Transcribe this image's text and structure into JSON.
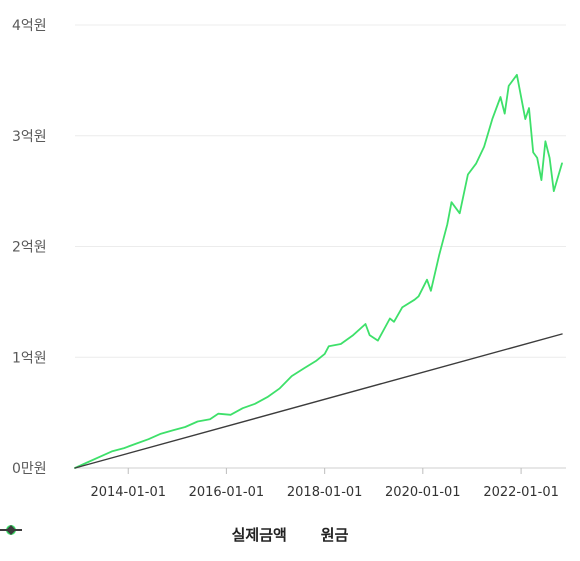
{
  "chart_data": {
    "type": "line",
    "y_tick_labels": [
      "0만원",
      "1억원",
      "2억원",
      "3억원",
      "4억원"
    ],
    "y_ticks": [
      0,
      1,
      2,
      3,
      4
    ],
    "ylim": [
      0,
      4
    ],
    "x_tick_labels": [
      "2014-01-01",
      "2016-01-01",
      "2018-01-01",
      "2020-01-01",
      "2022-01-01"
    ],
    "x_ticks": [
      "2014-01-01",
      "2016-01-01",
      "2018-01-01",
      "2020-01-01",
      "2022-01-01"
    ],
    "xlim": [
      "2012-12-01",
      "2022-12-01"
    ],
    "grid": "horizontal",
    "legend_position": "bottom-center",
    "series": [
      {
        "name": "실제금액",
        "color": "#3ee06a",
        "marker": "circle",
        "points": [
          [
            "2012-12-01",
            0.0
          ],
          [
            "2013-03-01",
            0.05
          ],
          [
            "2013-06-01",
            0.1
          ],
          [
            "2013-09-01",
            0.15
          ],
          [
            "2013-12-01",
            0.18
          ],
          [
            "2014-03-01",
            0.22
          ],
          [
            "2014-06-01",
            0.26
          ],
          [
            "2014-09-01",
            0.31
          ],
          [
            "2014-12-01",
            0.34
          ],
          [
            "2015-03-01",
            0.37
          ],
          [
            "2015-06-01",
            0.42
          ],
          [
            "2015-09-01",
            0.44
          ],
          [
            "2015-11-01",
            0.49
          ],
          [
            "2016-02-01",
            0.48
          ],
          [
            "2016-05-01",
            0.54
          ],
          [
            "2016-08-01",
            0.58
          ],
          [
            "2016-11-01",
            0.64
          ],
          [
            "2017-02-01",
            0.72
          ],
          [
            "2017-05-01",
            0.83
          ],
          [
            "2017-08-01",
            0.9
          ],
          [
            "2017-11-01",
            0.97
          ],
          [
            "2018-01-01",
            1.03
          ],
          [
            "2018-02-01",
            1.1
          ],
          [
            "2018-05-01",
            1.12
          ],
          [
            "2018-08-01",
            1.2
          ],
          [
            "2018-11-01",
            1.3
          ],
          [
            "2018-12-01",
            1.2
          ],
          [
            "2019-02-01",
            1.15
          ],
          [
            "2019-05-01",
            1.35
          ],
          [
            "2019-06-01",
            1.32
          ],
          [
            "2019-08-01",
            1.45
          ],
          [
            "2019-11-01",
            1.52
          ],
          [
            "2019-12-01",
            1.55
          ],
          [
            "2020-02-01",
            1.7
          ],
          [
            "2020-03-01",
            1.6
          ],
          [
            "2020-05-01",
            1.92
          ],
          [
            "2020-07-01",
            2.2
          ],
          [
            "2020-08-01",
            2.4
          ],
          [
            "2020-10-01",
            2.3
          ],
          [
            "2020-12-01",
            2.65
          ],
          [
            "2021-02-01",
            2.75
          ],
          [
            "2021-04-01",
            2.9
          ],
          [
            "2021-06-01",
            3.15
          ],
          [
            "2021-08-01",
            3.35
          ],
          [
            "2021-09-01",
            3.2
          ],
          [
            "2021-10-01",
            3.45
          ],
          [
            "2021-12-01",
            3.55
          ],
          [
            "2022-02-01",
            3.15
          ],
          [
            "2022-03-01",
            3.25
          ],
          [
            "2022-04-01",
            2.85
          ],
          [
            "2022-05-01",
            2.8
          ],
          [
            "2022-06-01",
            2.6
          ],
          [
            "2022-07-01",
            2.95
          ],
          [
            "2022-08-01",
            2.8
          ],
          [
            "2022-09-01",
            2.5
          ],
          [
            "2022-11-01",
            2.75
          ]
        ]
      },
      {
        "name": "원금",
        "color": "#3c3c3c",
        "marker": "diamond",
        "points": [
          [
            "2012-12-01",
            0.0
          ],
          [
            "2022-11-01",
            1.21
          ]
        ]
      }
    ]
  }
}
